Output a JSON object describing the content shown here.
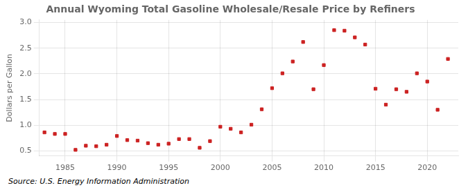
{
  "chart_data": {
    "type": "scatter",
    "title": "Annual Wyoming Total Gasoline Wholesale/Resale Price by Refiners",
    "y_label": "Dollars per Gallon",
    "annotations": [
      "Source: U.S. Energy Information Administration"
    ],
    "x": [
      1983,
      1984,
      1985,
      1986,
      1987,
      1988,
      1989,
      1990,
      1991,
      1992,
      1993,
      1994,
      1995,
      1996,
      1997,
      1998,
      1999,
      2000,
      2001,
      2002,
      2003,
      2004,
      2005,
      2006,
      2007,
      2008,
      2009,
      2010,
      2011,
      2012,
      2013,
      2014,
      2015,
      2016,
      2017,
      2018,
      2019,
      2020,
      2021,
      2022
    ],
    "values": [
      0.86,
      0.83,
      0.83,
      0.52,
      0.6,
      0.59,
      0.62,
      0.79,
      0.71,
      0.7,
      0.65,
      0.62,
      0.64,
      0.73,
      0.73,
      0.56,
      0.69,
      0.97,
      0.93,
      0.86,
      1.01,
      1.31,
      1.72,
      2.01,
      2.24,
      2.62,
      1.7,
      2.17,
      2.85,
      2.84,
      2.71,
      2.57,
      1.71,
      1.4,
      1.7,
      1.65,
      2.01,
      1.85,
      1.3,
      2.29
    ],
    "color": "#cc2222",
    "marker": "square",
    "xlim": [
      1982.5,
      2023
    ],
    "xticks": [
      1985,
      1990,
      1995,
      2000,
      2005,
      2010,
      2015,
      2020
    ],
    "ylim": [
      0.4,
      3.05
    ],
    "yticks": [
      {
        "value": 0.5,
        "label": "0.5"
      },
      {
        "value": 1.0,
        "label": "1.0"
      },
      {
        "value": 1.5,
        "label": "1.5"
      },
      {
        "value": 2.0,
        "label": "2.0"
      },
      {
        "value": 2.5,
        "label": "2.5"
      },
      {
        "value": 3.0,
        "label": "3.0"
      }
    ],
    "grid": true
  }
}
